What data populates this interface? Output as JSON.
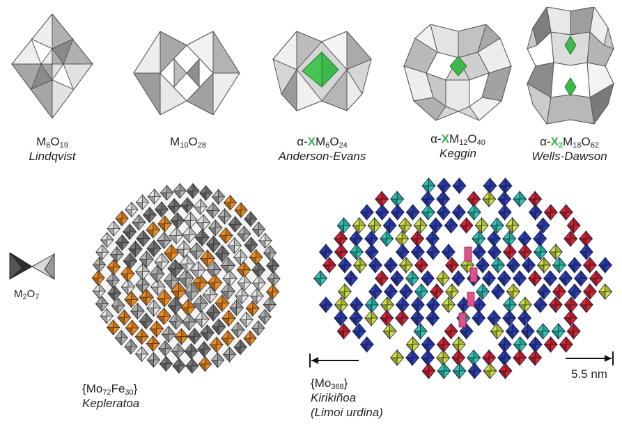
{
  "structures": [
    {
      "formula": {
        "pre": "",
        "x": "",
        "parts": [
          [
            "M",
            "6"
          ],
          [
            "O",
            "19"
          ]
        ]
      },
      "name": "Lindqvist"
    },
    {
      "formula": {
        "pre": "",
        "x": "",
        "parts": [
          [
            "M",
            "10"
          ],
          [
            "O",
            "28"
          ]
        ]
      },
      "name": ""
    },
    {
      "formula": {
        "pre": "α-",
        "x": "X",
        "xsub": "",
        "parts": [
          [
            "M",
            "6"
          ],
          [
            "O",
            "24"
          ]
        ]
      },
      "name": "Anderson-Evans"
    },
    {
      "formula": {
        "pre": "α-",
        "x": "X",
        "xsub": "",
        "parts": [
          [
            "M",
            "12"
          ],
          [
            "O",
            "40"
          ]
        ]
      },
      "name": "Keggin"
    },
    {
      "formula": {
        "pre": "α-",
        "x": "X",
        "xsub": "2",
        "parts": [
          [
            "M",
            "18"
          ],
          [
            "O",
            "62"
          ]
        ]
      },
      "name": "Wells-Dawson"
    }
  ],
  "m2o7": {
    "parts": [
      [
        "M",
        "2"
      ],
      [
        "O",
        "7"
      ]
    ]
  },
  "keplerate": {
    "formula": {
      "lead": "{",
      "parts": [
        [
          "Mo",
          "72"
        ],
        [
          "Fe",
          "30"
        ]
      ],
      "trail": "}"
    },
    "name": "Kepleratoa"
  },
  "kirikinoa": {
    "formula": {
      "lead": "{",
      "parts": [
        [
          "Mo",
          "368"
        ]
      ],
      "trail": "}"
    },
    "name": "Kirikiñoa",
    "subname": "(Limoi urdina)"
  },
  "scale_bar": {
    "label": "5.5 nm"
  },
  "colors": {
    "grey_light": "#e4e4e4",
    "grey_mid": "#b3b3b3",
    "grey_dark": "#7a7a7a",
    "orange": "#ef8a1d",
    "green": "#3db84a",
    "blue": "#2b3fb3",
    "cyan": "#2ec8b0",
    "yellow": "#cfe13a",
    "red": "#d9232b",
    "pink": "#e0508a"
  }
}
